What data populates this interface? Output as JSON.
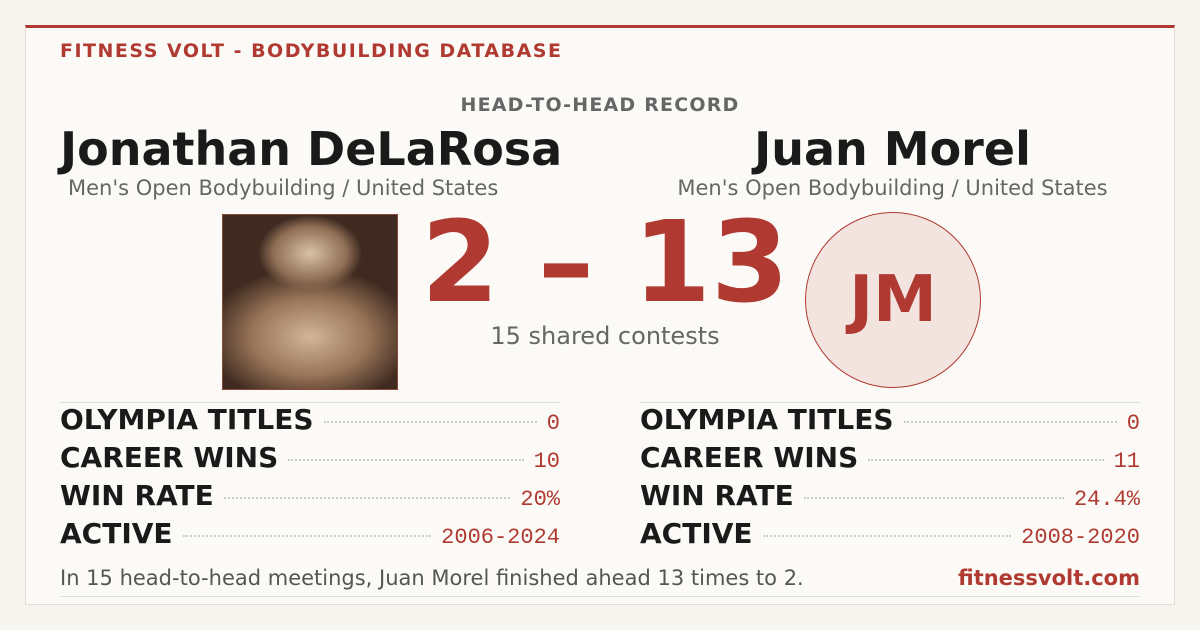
{
  "header": {
    "brand": "FITNESS VOLT - BODYBUILDING DATABASE",
    "section": "HEAD-TO-HEAD RECORD"
  },
  "athletes": [
    {
      "name": "Jonathan DeLaRosa",
      "division": "Men's Open Bodybuilding / United States",
      "stats": [
        {
          "label": "OLYMPIA TITLES",
          "value": "0"
        },
        {
          "label": "CAREER WINS",
          "value": "10"
        },
        {
          "label": "WIN RATE",
          "value": "20%"
        },
        {
          "label": "ACTIVE",
          "value": "2006-2024"
        }
      ]
    },
    {
      "name": "Juan Morel",
      "division": "Men's Open Bodybuilding / United States",
      "initials": "JM",
      "stats": [
        {
          "label": "OLYMPIA TITLES",
          "value": "0"
        },
        {
          "label": "CAREER WINS",
          "value": "11"
        },
        {
          "label": "WIN RATE",
          "value": "24.4%"
        },
        {
          "label": "ACTIVE",
          "value": "2008-2020"
        }
      ]
    }
  ],
  "score": "2 – 13",
  "shared": "15 shared contests",
  "footer": {
    "summary": "In 15 head-to-head meetings, Juan Morel finished ahead 13 times to 2.",
    "site": "fitnessvolt.com"
  }
}
